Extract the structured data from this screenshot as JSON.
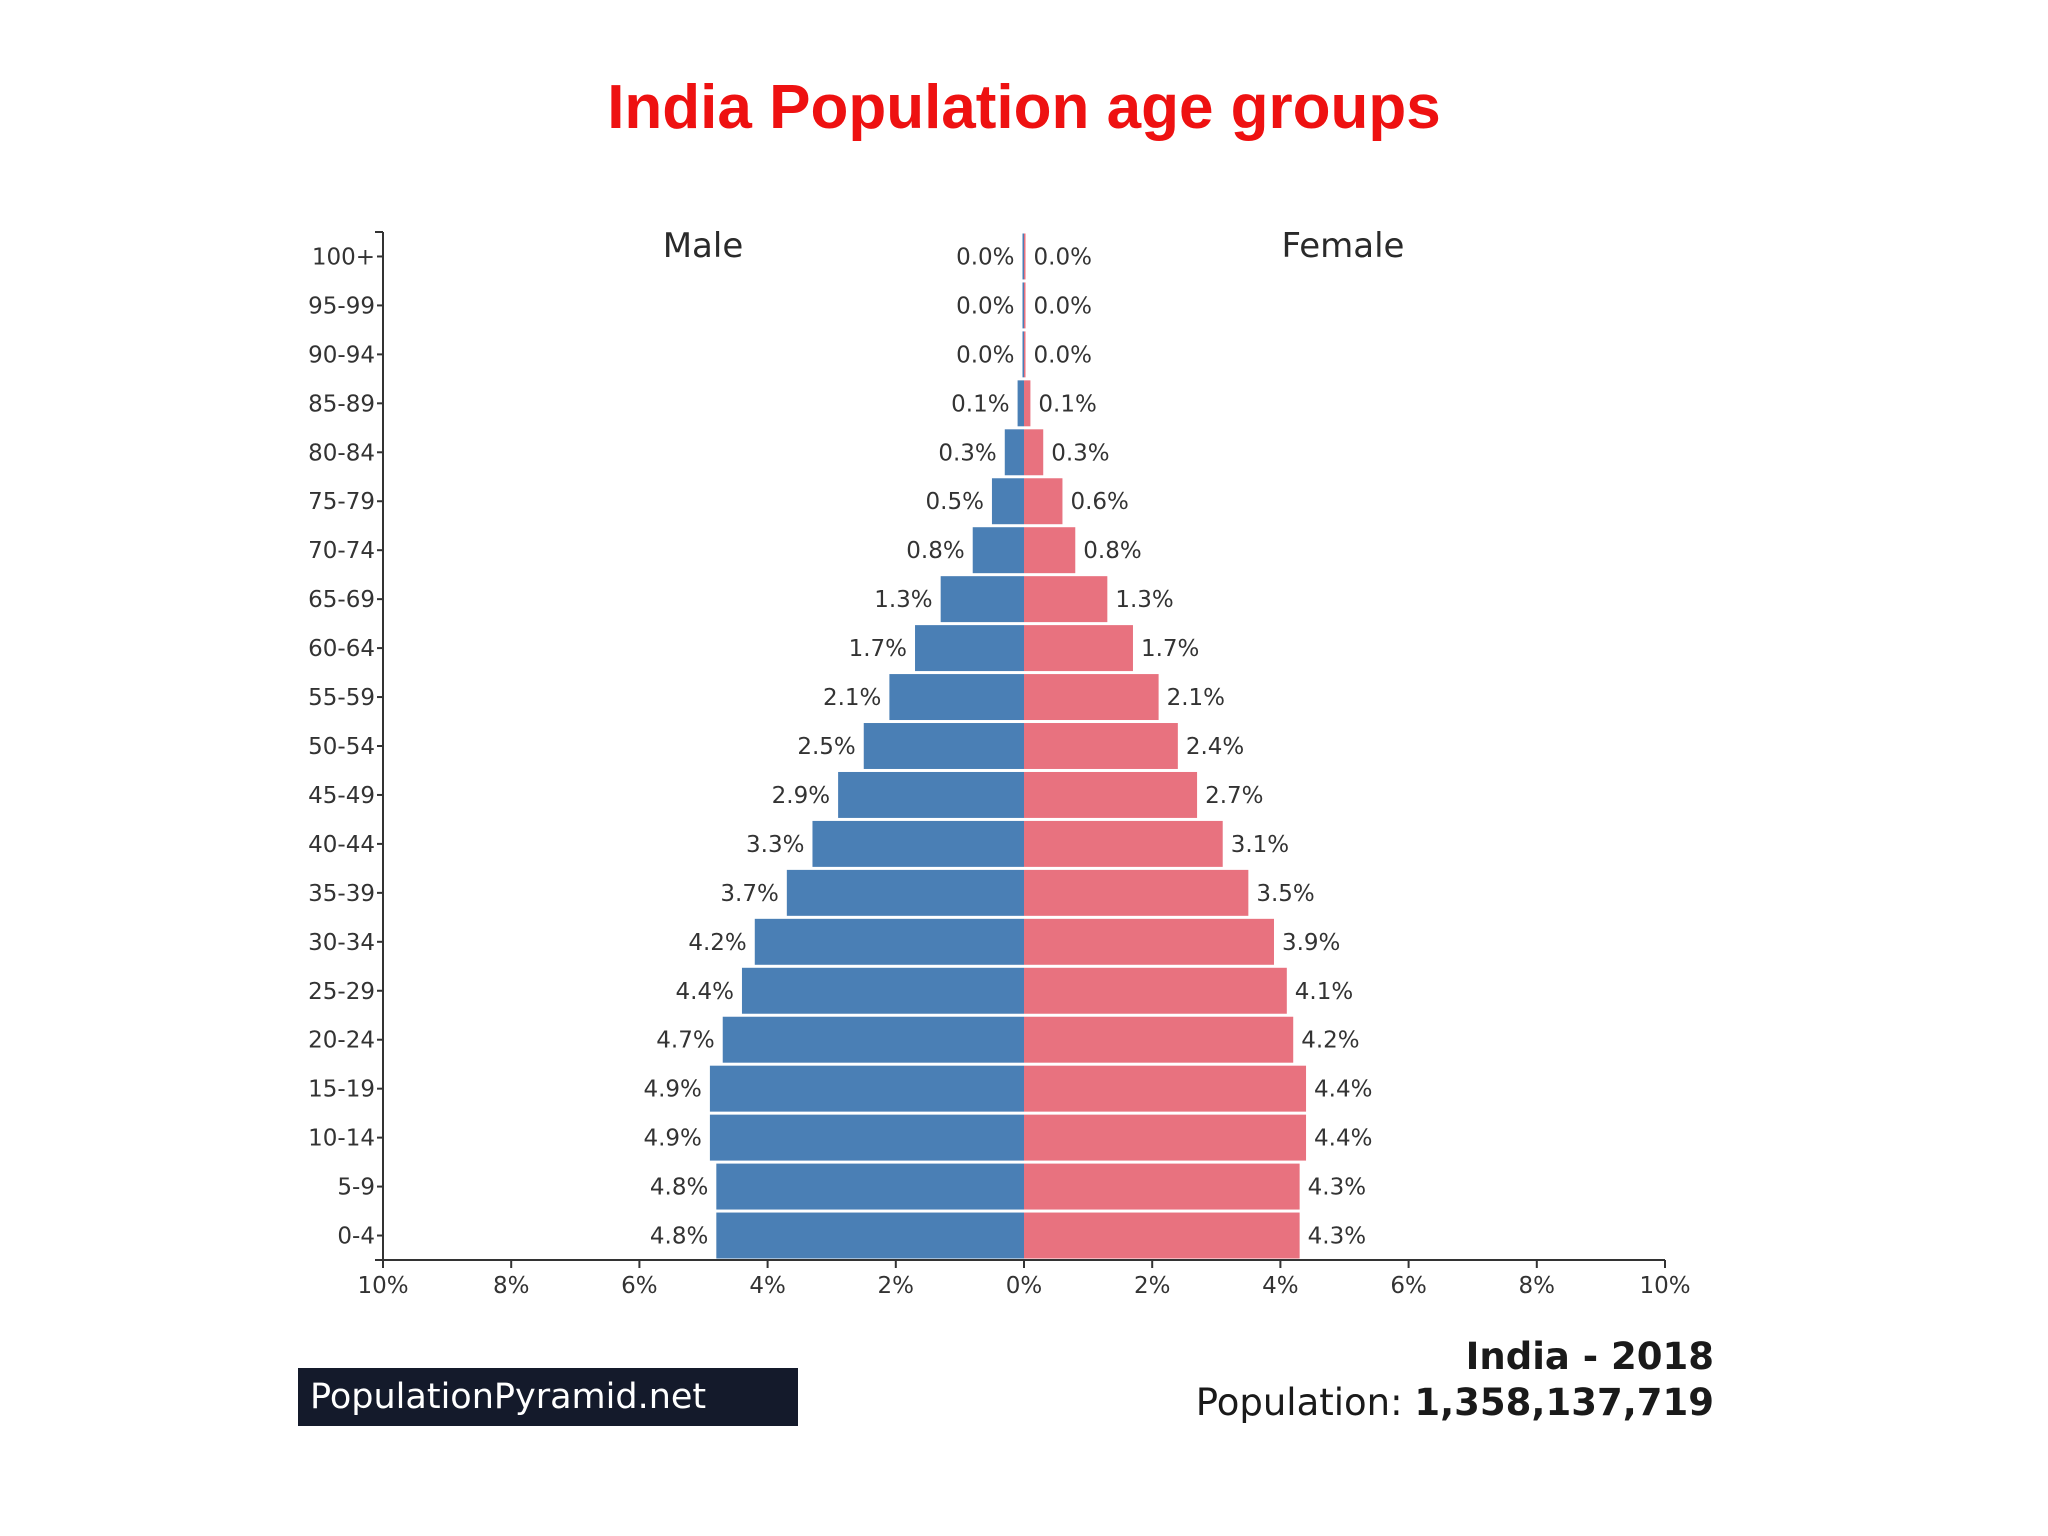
{
  "slide_title": "India Population age groups",
  "source_badge": "PopulationPyramid.net",
  "caption": {
    "country_year": "India - 2018",
    "population_label": "Population:",
    "population_value": "1,358,137,719"
  },
  "chart_data": {
    "type": "bar",
    "orientation": "horizontal-pyramid",
    "left_label": "Male",
    "right_label": "Female",
    "categories": [
      "100+",
      "95-99",
      "90-94",
      "85-89",
      "80-84",
      "75-79",
      "70-74",
      "65-69",
      "60-64",
      "55-59",
      "50-54",
      "45-49",
      "40-44",
      "35-39",
      "30-34",
      "25-29",
      "20-24",
      "15-19",
      "10-14",
      "5-9",
      "0-4"
    ],
    "series": [
      {
        "name": "Male",
        "color": "#4a7fb5",
        "values": [
          0.0,
          0.0,
          0.0,
          0.1,
          0.3,
          0.5,
          0.8,
          1.3,
          1.7,
          2.1,
          2.5,
          2.9,
          3.3,
          3.7,
          4.2,
          4.4,
          4.7,
          4.9,
          4.9,
          4.8,
          4.8
        ],
        "labels": [
          "0.0%",
          "0.0%",
          "0.0%",
          "0.1%",
          "0.3%",
          "0.5%",
          "0.8%",
          "1.3%",
          "1.7%",
          "2.1%",
          "2.5%",
          "2.9%",
          "3.3%",
          "3.7%",
          "4.2%",
          "4.4%",
          "4.7%",
          "4.9%",
          "4.9%",
          "4.8%",
          "4.8%"
        ]
      },
      {
        "name": "Female",
        "color": "#e8727f",
        "values": [
          0.0,
          0.0,
          0.0,
          0.1,
          0.3,
          0.6,
          0.8,
          1.3,
          1.7,
          2.1,
          2.4,
          2.7,
          3.1,
          3.5,
          3.9,
          4.1,
          4.2,
          4.4,
          4.4,
          4.3,
          4.3
        ],
        "labels": [
          "0.0%",
          "0.0%",
          "0.0%",
          "0.1%",
          "0.3%",
          "0.6%",
          "0.8%",
          "1.3%",
          "1.7%",
          "2.1%",
          "2.4%",
          "2.7%",
          "3.1%",
          "3.5%",
          "3.9%",
          "4.1%",
          "4.2%",
          "4.4%",
          "4.4%",
          "4.3%",
          "4.3%"
        ]
      }
    ],
    "x_range": [
      -10,
      10
    ],
    "x_ticks": [
      "10%",
      "8%",
      "6%",
      "4%",
      "2%",
      "0%",
      "2%",
      "4%",
      "6%",
      "8%",
      "10%"
    ],
    "grid": false
  }
}
